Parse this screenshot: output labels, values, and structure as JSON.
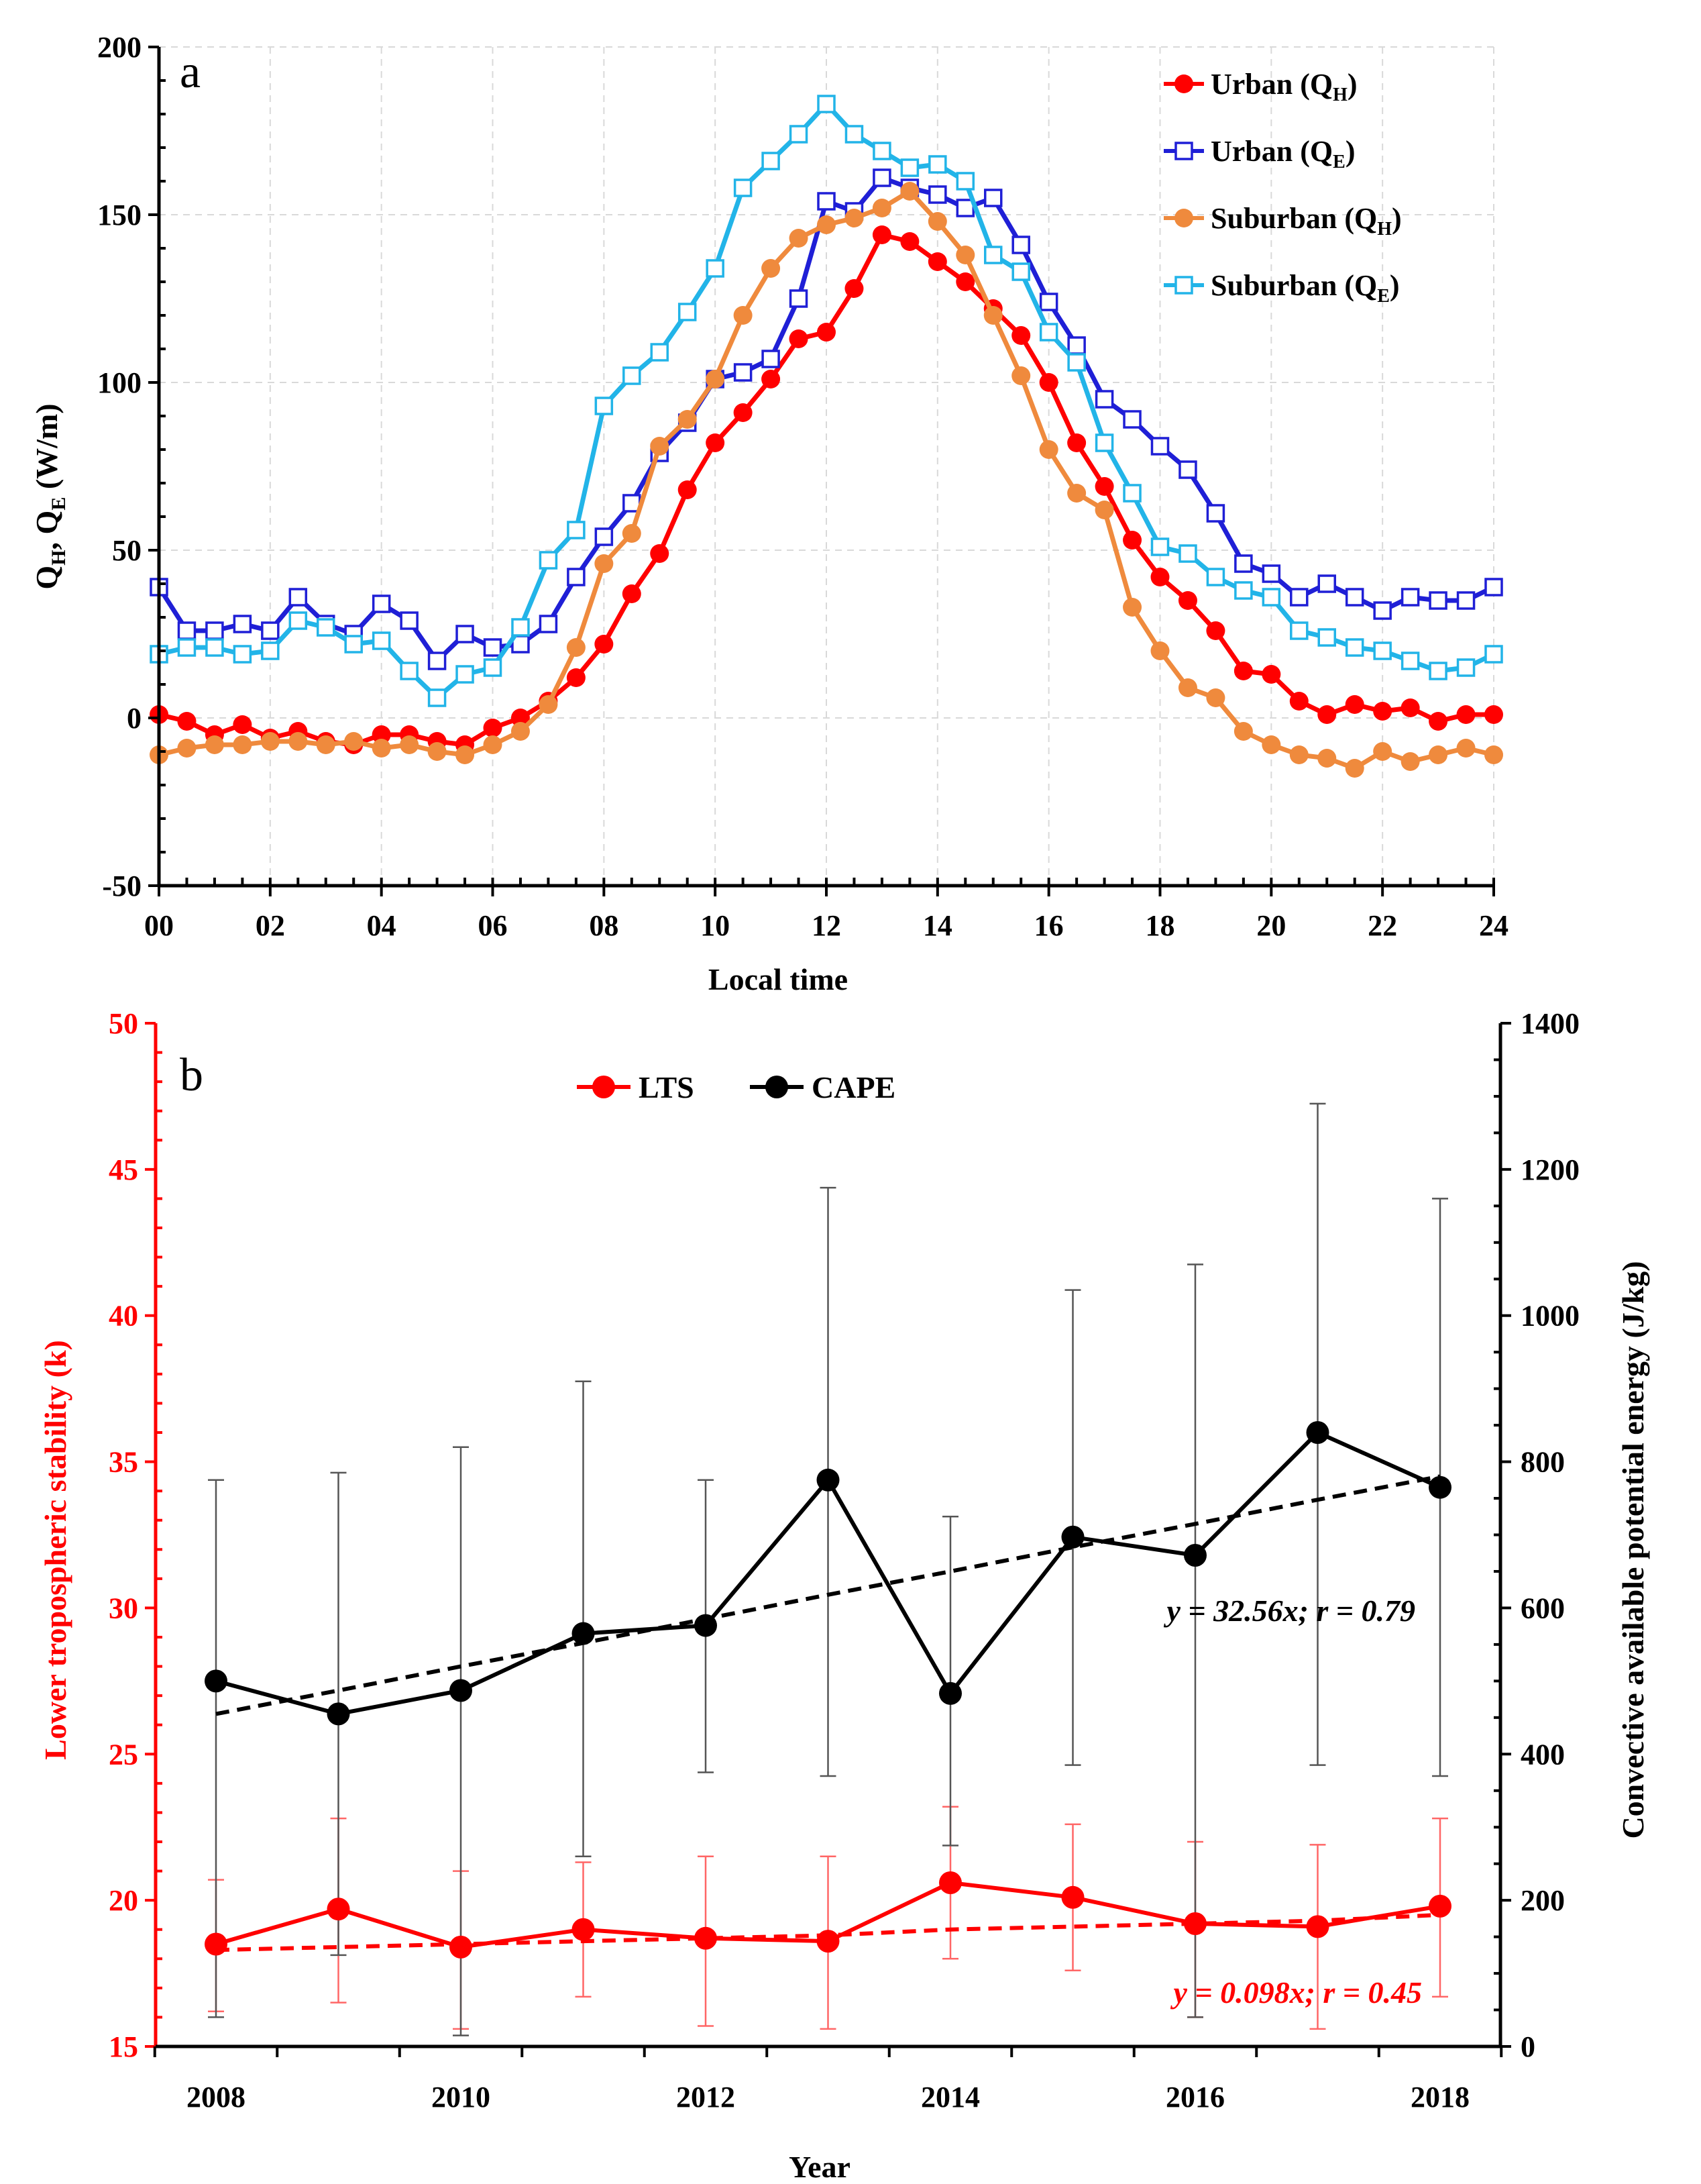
{
  "chart_data": [
    {
      "panel": "a",
      "type": "line",
      "title": "",
      "xlabel": "Local time",
      "ylabel": "QH, QE (W/m)",
      "xlim": [
        0,
        24
      ],
      "ylim": [
        -50,
        200
      ],
      "x_tick_labels": [
        "00",
        "02",
        "04",
        "06",
        "08",
        "10",
        "12",
        "14",
        "16",
        "18",
        "20",
        "22",
        "24"
      ],
      "y_tick_labels": [
        "-50",
        "0",
        "50",
        "100",
        "150",
        "200"
      ],
      "grid": true,
      "legend_position": "top-right",
      "x": [
        0,
        0.5,
        1,
        1.5,
        2,
        2.5,
        3,
        3.5,
        4,
        4.5,
        5,
        5.5,
        6,
        6.5,
        7,
        7.5,
        8,
        8.5,
        9,
        9.5,
        10,
        10.5,
        11,
        11.5,
        12,
        12.5,
        13,
        13.5,
        14,
        14.5,
        15,
        15.5,
        16,
        16.5,
        17,
        17.5,
        18,
        18.5,
        19,
        19.5,
        20,
        20.5,
        21,
        21.5,
        22,
        22.5,
        23,
        23.5,
        24
      ],
      "series": [
        {
          "name": "Urban (QH)",
          "color": "#ff0000",
          "marker": "filled-circle",
          "values": [
            1,
            -1,
            -5,
            -2,
            -6,
            -4,
            -7,
            -8,
            -5,
            -5,
            -7,
            -8,
            -3,
            0,
            5,
            12,
            22,
            37,
            49,
            68,
            82,
            91,
            101,
            113,
            115,
            128,
            144,
            142,
            136,
            130,
            122,
            114,
            100,
            82,
            69,
            53,
            42,
            35,
            26,
            14,
            13,
            5,
            1,
            4,
            2,
            3,
            -1,
            1,
            1
          ]
        },
        {
          "name": "Urban (QE)",
          "color": "#1f1fd6",
          "marker": "open-square",
          "values": [
            39,
            26,
            26,
            28,
            26,
            36,
            28,
            25,
            34,
            29,
            17,
            25,
            21,
            22,
            28,
            42,
            54,
            64,
            79,
            88,
            101,
            103,
            107,
            125,
            154,
            151,
            161,
            158,
            156,
            152,
            155,
            141,
            124,
            111,
            95,
            89,
            81,
            74,
            61,
            46,
            43,
            36,
            40,
            36,
            32,
            36,
            35,
            35,
            39
          ]
        },
        {
          "name": "Suburban (QH)",
          "color": "#ef8a3d",
          "marker": "filled-circle",
          "values": [
            -11,
            -9,
            -8,
            -8,
            -7,
            -7,
            -8,
            -7,
            -9,
            -8,
            -10,
            -11,
            -8,
            -4,
            4,
            21,
            46,
            55,
            81,
            89,
            101,
            120,
            134,
            143,
            147,
            149,
            152,
            157,
            148,
            138,
            120,
            102,
            80,
            67,
            62,
            33,
            20,
            9,
            6,
            -4,
            -8,
            -11,
            -12,
            -15,
            -10,
            -13,
            -11,
            -9,
            -11
          ]
        },
        {
          "name": "Suburban (QE)",
          "color": "#22b4e8",
          "marker": "open-square",
          "values": [
            19,
            21,
            21,
            19,
            20,
            29,
            27,
            22,
            23,
            14,
            6,
            13,
            15,
            27,
            47,
            56,
            93,
            102,
            109,
            121,
            134,
            158,
            166,
            174,
            183,
            174,
            169,
            164,
            165,
            160,
            138,
            133,
            115,
            106,
            82,
            67,
            51,
            49,
            42,
            38,
            36,
            26,
            24,
            21,
            20,
            17,
            14,
            15,
            19
          ]
        }
      ]
    },
    {
      "panel": "b",
      "type": "line",
      "title": "",
      "xlabel": "Year",
      "ylabel_left": "Lower tropospheric stability (k)",
      "ylabel_right": "Convective available potential energy (J/kg)",
      "x": [
        2008,
        2009,
        2010,
        2011,
        2012,
        2013,
        2014,
        2015,
        2016,
        2017,
        2018
      ],
      "x_tick_labels": [
        "2008",
        "2010",
        "2012",
        "2014",
        "2016",
        "2018"
      ],
      "ylim_left": [
        15,
        50
      ],
      "ylim_right": [
        0,
        1400
      ],
      "y_left_tick_labels": [
        "15",
        "20",
        "25",
        "30",
        "35",
        "40",
        "45",
        "50"
      ],
      "y_right_tick_labels": [
        "0",
        "200",
        "400",
        "600",
        "800",
        "1000",
        "1200",
        "1400"
      ],
      "grid": false,
      "legend_position": "top-center",
      "series": [
        {
          "name": "LTS",
          "axis": "left",
          "color": "#ff0000",
          "values": [
            18.5,
            19.7,
            18.4,
            19.0,
            18.7,
            18.6,
            20.6,
            20.1,
            19.2,
            19.1,
            19.8
          ],
          "err_low": [
            16.2,
            16.5,
            15.6,
            16.7,
            15.7,
            15.6,
            18.0,
            17.6,
            16.0,
            15.6,
            16.7
          ],
          "err_high": [
            20.7,
            22.8,
            21.0,
            21.3,
            21.5,
            21.5,
            23.2,
            22.6,
            22.0,
            21.9,
            22.8
          ],
          "trend": [
            18.3,
            18.4,
            18.5,
            18.6,
            18.7,
            18.8,
            19.0,
            19.1,
            19.2,
            19.3,
            19.5
          ],
          "fit_label": "y = 0.098x; r = 0.45"
        },
        {
          "name": "CAPE",
          "axis": "right",
          "color": "#000000",
          "values": [
            500,
            455,
            487,
            565,
            576,
            775,
            483,
            697,
            672,
            840,
            765
          ],
          "err_low": [
            40,
            125,
            15,
            260,
            375,
            370,
            275,
            385,
            40,
            385,
            370
          ],
          "err_high": [
            775,
            785,
            820,
            910,
            775,
            1175,
            725,
            1035,
            1070,
            1290,
            1160
          ],
          "trend": [
            455,
            487,
            520,
            552,
            585,
            618,
            650,
            683,
            715,
            748,
            780
          ],
          "fit_label": "y = 32.56x; r = 0.79"
        }
      ]
    }
  ],
  "panel_labels": {
    "a": "a",
    "b": "b"
  },
  "axis_text": {
    "a_xlabel": "Local time",
    "a_ylabel_prefix": "Q",
    "a_ylabel_suffix": " (W/m)",
    "b_xlabel": "Year",
    "b_ylabel_left": "Lower tropospheric stability (k)",
    "b_ylabel_right": "Convective available potential energy (J/kg)"
  }
}
